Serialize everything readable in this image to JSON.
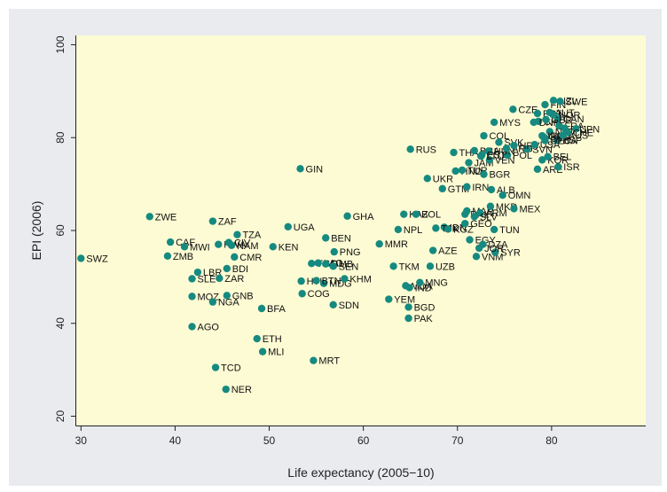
{
  "chart_data": {
    "type": "scatter",
    "title": "",
    "xlabel": "Life expectancy (2005−10)",
    "ylabel": "EPI (2006)",
    "xlim": [
      29.5,
      90
    ],
    "ylim": [
      18,
      102
    ],
    "xticks": [
      30,
      40,
      50,
      60,
      70,
      80
    ],
    "yticks": [
      20,
      40,
      60,
      80,
      100
    ],
    "grid": false,
    "plot_background": "#fdfbd3",
    "frame_background": "#e9ebee",
    "marker_color": "#168a80",
    "points": [
      {
        "label": "SWZ",
        "x": 30,
        "y": 54
      },
      {
        "label": "ZWE",
        "x": 37.3,
        "y": 63
      },
      {
        "label": "ZMB",
        "x": 39.2,
        "y": 54.5
      },
      {
        "label": "CAF",
        "x": 39.5,
        "y": 57.5
      },
      {
        "label": "MWI",
        "x": 41,
        "y": 56.5
      },
      {
        "label": "MOZ",
        "x": 41.8,
        "y": 45.8
      },
      {
        "label": "AGO",
        "x": 41.8,
        "y": 39.3
      },
      {
        "label": "SLE",
        "x": 41.8,
        "y": 49.6
      },
      {
        "label": "LBR",
        "x": 42.4,
        "y": 51
      },
      {
        "label": "ZAF",
        "x": 44,
        "y": 62
      },
      {
        "label": "NGA",
        "x": 44,
        "y": 44.6
      },
      {
        "label": "TCD",
        "x": 44.3,
        "y": 30.5
      },
      {
        "label": "RWA",
        "x": 44.6,
        "y": 57
      },
      {
        "label": "ZAR",
        "x": 44.7,
        "y": 49.7
      },
      {
        "label": "NER",
        "x": 45.4,
        "y": 25.8
      },
      {
        "label": "GNB",
        "x": 45.5,
        "y": 46
      },
      {
        "label": "BDI",
        "x": 45.5,
        "y": 51.8
      },
      {
        "label": "CIV",
        "x": 45.7,
        "y": 57.4
      },
      {
        "label": "NAM",
        "x": 46,
        "y": 56.8
      },
      {
        "label": "CMR",
        "x": 46.3,
        "y": 54.3
      },
      {
        "label": "TZA",
        "x": 46.6,
        "y": 59.1
      },
      {
        "label": "ETH",
        "x": 48.7,
        "y": 36.7
      },
      {
        "label": "BFA",
        "x": 49.2,
        "y": 43.2
      },
      {
        "label": "MLI",
        "x": 49.3,
        "y": 33.9
      },
      {
        "label": "KEN",
        "x": 50.4,
        "y": 56.5
      },
      {
        "label": "UGA",
        "x": 52,
        "y": 60.8
      },
      {
        "label": "GIN",
        "x": 53.3,
        "y": 73.3
      },
      {
        "label": "HTI",
        "x": 53.4,
        "y": 49.1
      },
      {
        "label": "COG",
        "x": 53.5,
        "y": 46.4
      },
      {
        "label": "TGO",
        "x": 54.5,
        "y": 52.9
      },
      {
        "label": "MRT",
        "x": 54.7,
        "y": 32
      },
      {
        "label": "BEN",
        "x": 56,
        "y": 58.4
      },
      {
        "label": "LAO",
        "x": 55.2,
        "y": 53
      },
      {
        "label": "MDG",
        "x": 55.8,
        "y": 48.6
      },
      {
        "label": "GMB",
        "x": 56,
        "y": 52.8
      },
      {
        "label": "SEN",
        "x": 56.8,
        "y": 52.3
      },
      {
        "label": "PNG",
        "x": 56.9,
        "y": 55.4
      },
      {
        "label": "SDN",
        "x": 56.8,
        "y": 44
      },
      {
        "label": "BTN",
        "x": 55,
        "y": 49.2
      },
      {
        "label": "KHM",
        "x": 58,
        "y": 49.6
      },
      {
        "label": "GHA",
        "x": 58.3,
        "y": 63.1
      },
      {
        "label": "MMR",
        "x": 61.7,
        "y": 57.1
      },
      {
        "label": "YEM",
        "x": 62.7,
        "y": 45.2
      },
      {
        "label": "TKM",
        "x": 63.2,
        "y": 52.3
      },
      {
        "label": "NPL",
        "x": 63.7,
        "y": 60.2
      },
      {
        "label": "KAZ",
        "x": 64.3,
        "y": 63.5
      },
      {
        "label": "MDA",
        "x": 64.5,
        "y": 48.1
      },
      {
        "label": "RUS",
        "x": 65,
        "y": 77.5
      },
      {
        "label": "IND",
        "x": 64.9,
        "y": 47.7
      },
      {
        "label": "BGD",
        "x": 64.8,
        "y": 43.5
      },
      {
        "label": "PAK",
        "x": 64.8,
        "y": 41.1
      },
      {
        "label": "BOL",
        "x": 65.6,
        "y": 63.5
      },
      {
        "label": "MNG",
        "x": 66,
        "y": 48.8
      },
      {
        "label": "UKR",
        "x": 66.8,
        "y": 71.2
      },
      {
        "label": "AZE",
        "x": 67.4,
        "y": 55.7
      },
      {
        "label": "UZB",
        "x": 67.1,
        "y": 52.3
      },
      {
        "label": "GTM",
        "x": 68.4,
        "y": 69
      },
      {
        "label": "IDN",
        "x": 68.6,
        "y": 60.7
      },
      {
        "label": "TJK",
        "x": 67.7,
        "y": 60.5
      },
      {
        "label": "PHL",
        "x": 70.8,
        "y": 63.5
      },
      {
        "label": "MAR",
        "x": 71,
        "y": 64.2
      },
      {
        "label": "KGZ",
        "x": 69,
        "y": 60.3
      },
      {
        "label": "EGY",
        "x": 71.3,
        "y": 58
      },
      {
        "label": "GEO",
        "x": 70.8,
        "y": 61.5
      },
      {
        "label": "IRN",
        "x": 71,
        "y": 69.4
      },
      {
        "label": "HND",
        "x": 69.8,
        "y": 72.8
      },
      {
        "label": "TUR",
        "x": 70.5,
        "y": 73
      },
      {
        "label": "THA",
        "x": 69.6,
        "y": 76.8
      },
      {
        "label": "JAM",
        "x": 71.2,
        "y": 74.6
      },
      {
        "label": "BRA",
        "x": 71.8,
        "y": 77.2
      },
      {
        "label": "BGR",
        "x": 72.8,
        "y": 72.1
      },
      {
        "label": "VEN",
        "x": 73.4,
        "y": 75.2
      },
      {
        "label": "ARM",
        "x": 72.4,
        "y": 63.8
      },
      {
        "label": "SLV",
        "x": 71.8,
        "y": 63
      },
      {
        "label": "ALB",
        "x": 73.6,
        "y": 68.8
      },
      {
        "label": "OMN",
        "x": 74.8,
        "y": 67.6
      },
      {
        "label": "MKD",
        "x": 73.5,
        "y": 65.2
      },
      {
        "label": "VNM",
        "x": 72,
        "y": 54.4
      },
      {
        "label": "TUN",
        "x": 73.9,
        "y": 60.2
      },
      {
        "label": "SYR",
        "x": 74,
        "y": 55.3
      },
      {
        "label": "JOR",
        "x": 72.3,
        "y": 56.2
      },
      {
        "label": "DZA",
        "x": 72.7,
        "y": 57
      },
      {
        "label": "MEX",
        "x": 76,
        "y": 64.7
      },
      {
        "label": "COL",
        "x": 72.8,
        "y": 80.4
      },
      {
        "label": "MYS",
        "x": 73.9,
        "y": 83.3
      },
      {
        "label": "SVK",
        "x": 74.4,
        "y": 79
      },
      {
        "label": "CZE",
        "x": 75.9,
        "y": 86.1
      },
      {
        "label": "POL",
        "x": 75.3,
        "y": 76.2
      },
      {
        "label": "HUN",
        "x": 73.3,
        "y": 77.1
      },
      {
        "label": "ARG",
        "x": 75.2,
        "y": 77.7
      },
      {
        "label": "ARE",
        "x": 78.5,
        "y": 73.2
      },
      {
        "label": "SVN",
        "x": 77.4,
        "y": 77.5
      },
      {
        "label": "ISR",
        "x": 80.7,
        "y": 73.7
      },
      {
        "label": "KOR",
        "x": 79,
        "y": 75.2
      },
      {
        "label": "BEL",
        "x": 79.6,
        "y": 75.9
      },
      {
        "label": "HRV",
        "x": 76,
        "y": 78.3
      },
      {
        "label": "CHL",
        "x": 78.6,
        "y": 83.5
      },
      {
        "label": "DNK",
        "x": 78.1,
        "y": 83.3
      },
      {
        "label": "PRT",
        "x": 78.5,
        "y": 85.2
      },
      {
        "label": "USA",
        "x": 78.2,
        "y": 78.5
      },
      {
        "label": "EST",
        "x": 72.6,
        "y": 76.3
      },
      {
        "label": "LTU",
        "x": 72.5,
        "y": 76
      },
      {
        "label": "CAN",
        "x": 80.7,
        "y": 84.1
      },
      {
        "label": "FRA",
        "x": 80.8,
        "y": 82.5
      },
      {
        "label": "ITA",
        "x": 80.6,
        "y": 79.4
      },
      {
        "label": "ESP",
        "x": 80.6,
        "y": 79.5
      },
      {
        "label": "NLD",
        "x": 79.8,
        "y": 81.3
      },
      {
        "label": "IRL",
        "x": 79,
        "y": 80.4
      },
      {
        "label": "GRC",
        "x": 79.1,
        "y": 80.2
      },
      {
        "label": "DEU",
        "x": 79.3,
        "y": 79.4
      },
      {
        "label": "CYP",
        "x": 79.3,
        "y": 79.9
      },
      {
        "label": "GBR",
        "x": 79.4,
        "y": 83.9
      },
      {
        "label": "FIN",
        "x": 79.3,
        "y": 87.1
      },
      {
        "label": "AUT",
        "x": 79.8,
        "y": 85.4
      },
      {
        "label": "AUS",
        "x": 81.2,
        "y": 80.5
      },
      {
        "label": "ISL",
        "x": 81.4,
        "y": 82
      },
      {
        "label": "JPN",
        "x": 82.6,
        "y": 81.9
      },
      {
        "label": "CHE",
        "x": 81.7,
        "y": 81.1
      },
      {
        "label": "NZL",
        "x": 80.2,
        "y": 88
      },
      {
        "label": "SWE",
        "x": 80.9,
        "y": 87.8
      },
      {
        "label": "NOR",
        "x": 80.2,
        "y": 84.9
      }
    ]
  }
}
